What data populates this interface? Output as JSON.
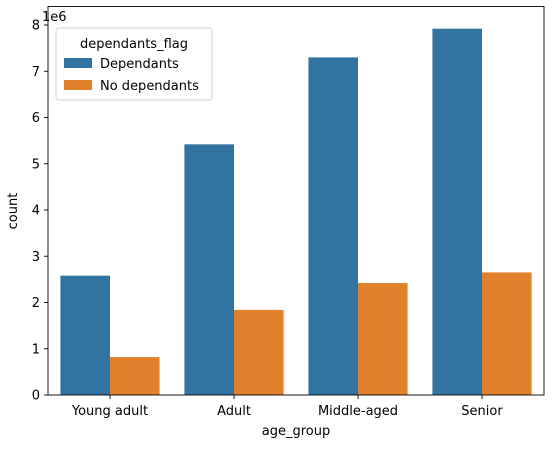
{
  "chart_data": {
    "type": "bar",
    "xlabel": "age_group",
    "ylabel": "count",
    "y_scale_label": "1e6",
    "categories": [
      "Young adult",
      "Adult",
      "Middle-aged",
      "Senior"
    ],
    "series": [
      {
        "name": "Dependants",
        "color": "#3274a1",
        "values": [
          2.58,
          5.42,
          7.3,
          7.92
        ]
      },
      {
        "name": "No dependants",
        "color": "#e1812c",
        "values": [
          0.82,
          1.84,
          2.42,
          2.65
        ]
      }
    ],
    "ylim": [
      0,
      8.4
    ],
    "yticks": [
      "0",
      "1",
      "2",
      "3",
      "4",
      "5",
      "6",
      "7",
      "8"
    ],
    "legend": {
      "title": "dependants_flag",
      "placement": "top-left"
    },
    "grid": false
  }
}
